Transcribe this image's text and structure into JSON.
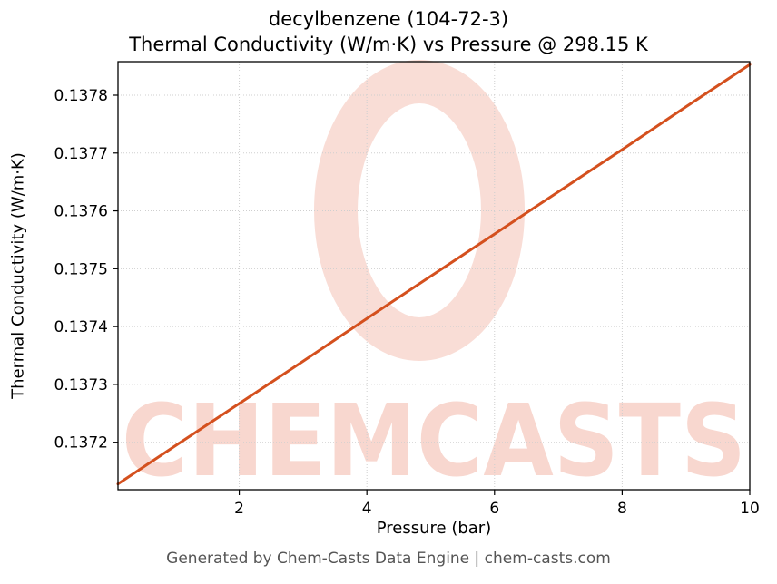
{
  "titles": {
    "line1": "decylbenzene (104-72-3)",
    "line2": "Thermal Conductivity (W/m·K) vs Pressure @ 298.15 K"
  },
  "footer": {
    "credit": "Generated by Chem-Casts Data Engine | chem-casts.com"
  },
  "watermark": {
    "text": "CHEMCASTS",
    "text_color": "#f8d7cf",
    "ring_color": "#f9ddd6"
  },
  "chart_data": {
    "type": "line",
    "title": "decylbenzene (104-72-3) — Thermal Conductivity (W/m·K) vs Pressure @ 298.15 K",
    "xlabel": "Pressure (bar)",
    "ylabel": "Thermal Conductivity (W/m·K)",
    "xlim": [
      0.1,
      10
    ],
    "ylim": [
      0.137118,
      0.137858
    ],
    "xticks": [
      2,
      4,
      6,
      8,
      10
    ],
    "yticks": [
      0.1372,
      0.1373,
      0.1374,
      0.1375,
      0.1376,
      0.1377,
      0.1378
    ],
    "ytick_decimals": 4,
    "grid": true,
    "legend": "none",
    "line_color": "#d4501e",
    "line_width": 3,
    "series": [
      {
        "name": "thermal-conductivity-vs-pressure",
        "x": [
          0.1,
          1,
          2,
          3,
          4,
          5,
          6,
          7,
          8,
          9,
          10
        ],
        "y": [
          0.137128,
          0.137194,
          0.137267,
          0.13734,
          0.137414,
          0.137487,
          0.13756,
          0.137633,
          0.137706,
          0.13778,
          0.137853
        ]
      }
    ]
  }
}
